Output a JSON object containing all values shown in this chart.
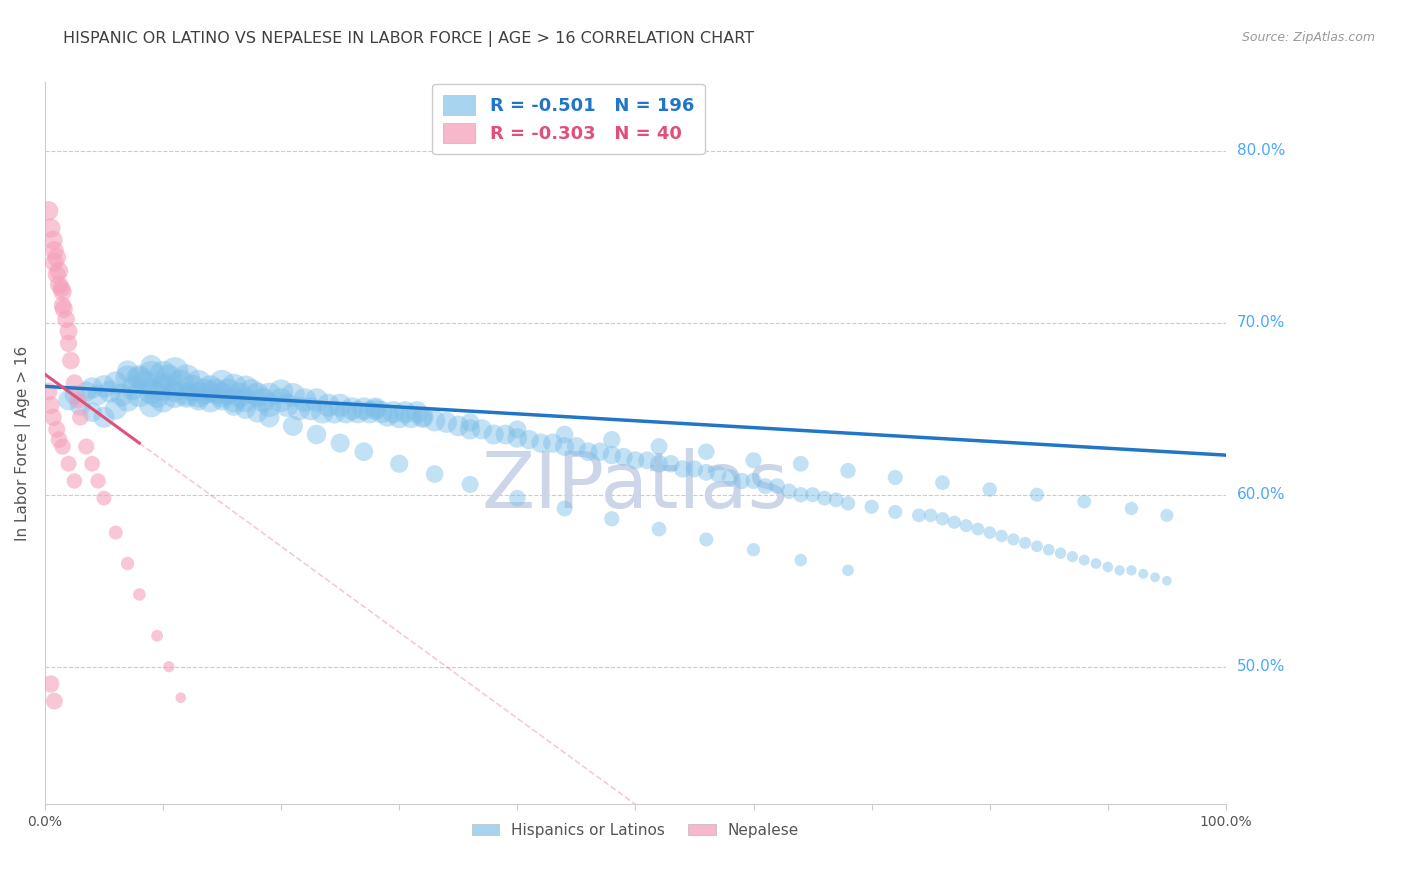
{
  "title": "HISPANIC OR LATINO VS NEPALESE IN LABOR FORCE | AGE > 16 CORRELATION CHART",
  "source": "Source: ZipAtlas.com",
  "ylabel": "In Labor Force | Age > 16",
  "watermark": "ZIPatlas",
  "legend_blue_r": "-0.501",
  "legend_blue_n": "196",
  "legend_pink_r": "-0.303",
  "legend_pink_n": "40",
  "xlim": [
    0.0,
    1.0
  ],
  "ylim": [
    0.42,
    0.84
  ],
  "xtick_labels": [
    "0.0%",
    "100.0%"
  ],
  "ytick_right": [
    0.5,
    0.6,
    0.7,
    0.8
  ],
  "ytick_right_labels": [
    "50.0%",
    "60.0%",
    "70.0%",
    "80.0%"
  ],
  "blue_color": "#7abde8",
  "pink_color": "#f5a0bb",
  "blue_line_color": "#2176c7",
  "pink_line_color": "#e0507a",
  "blue_scatter_x": [
    0.02,
    0.025,
    0.03,
    0.035,
    0.04,
    0.04,
    0.045,
    0.05,
    0.05,
    0.055,
    0.06,
    0.06,
    0.065,
    0.07,
    0.07,
    0.075,
    0.08,
    0.08,
    0.085,
    0.09,
    0.09,
    0.09,
    0.095,
    0.1,
    0.1,
    0.1,
    0.105,
    0.11,
    0.11,
    0.115,
    0.12,
    0.12,
    0.125,
    0.13,
    0.13,
    0.135,
    0.14,
    0.14,
    0.145,
    0.15,
    0.15,
    0.155,
    0.16,
    0.16,
    0.165,
    0.17,
    0.17,
    0.175,
    0.18,
    0.185,
    0.19,
    0.19,
    0.2,
    0.2,
    0.205,
    0.21,
    0.215,
    0.22,
    0.225,
    0.23,
    0.235,
    0.24,
    0.245,
    0.25,
    0.255,
    0.26,
    0.265,
    0.27,
    0.275,
    0.28,
    0.285,
    0.29,
    0.295,
    0.3,
    0.305,
    0.31,
    0.315,
    0.32,
    0.33,
    0.34,
    0.35,
    0.36,
    0.37,
    0.38,
    0.39,
    0.4,
    0.41,
    0.42,
    0.43,
    0.44,
    0.45,
    0.46,
    0.47,
    0.48,
    0.49,
    0.5,
    0.51,
    0.52,
    0.53,
    0.54,
    0.55,
    0.56,
    0.57,
    0.58,
    0.59,
    0.6,
    0.61,
    0.62,
    0.63,
    0.64,
    0.65,
    0.66,
    0.67,
    0.68,
    0.7,
    0.72,
    0.74,
    0.75,
    0.76,
    0.77,
    0.78,
    0.79,
    0.8,
    0.81,
    0.82,
    0.83,
    0.84,
    0.85,
    0.86,
    0.87,
    0.88,
    0.89,
    0.9,
    0.91,
    0.92,
    0.93,
    0.94,
    0.95,
    0.07,
    0.08,
    0.09,
    0.1,
    0.11,
    0.12,
    0.13,
    0.14,
    0.15,
    0.16,
    0.17,
    0.18,
    0.19,
    0.21,
    0.23,
    0.25,
    0.27,
    0.3,
    0.33,
    0.36,
    0.4,
    0.44,
    0.48,
    0.52,
    0.56,
    0.6,
    0.64,
    0.68,
    0.28,
    0.32,
    0.36,
    0.4,
    0.44,
    0.48,
    0.52,
    0.56,
    0.6,
    0.64,
    0.68,
    0.72,
    0.76,
    0.8,
    0.84,
    0.88,
    0.92,
    0.95
  ],
  "blue_scatter_y": [
    0.655,
    0.658,
    0.652,
    0.66,
    0.662,
    0.648,
    0.658,
    0.663,
    0.645,
    0.66,
    0.665,
    0.65,
    0.658,
    0.668,
    0.655,
    0.662,
    0.668,
    0.658,
    0.665,
    0.67,
    0.66,
    0.652,
    0.658,
    0.67,
    0.662,
    0.655,
    0.668,
    0.672,
    0.658,
    0.665,
    0.668,
    0.658,
    0.662,
    0.665,
    0.658,
    0.66,
    0.662,
    0.655,
    0.66,
    0.665,
    0.658,
    0.66,
    0.663,
    0.655,
    0.658,
    0.662,
    0.655,
    0.66,
    0.658,
    0.655,
    0.658,
    0.652,
    0.66,
    0.655,
    0.652,
    0.658,
    0.65,
    0.655,
    0.65,
    0.655,
    0.648,
    0.652,
    0.648,
    0.652,
    0.648,
    0.65,
    0.648,
    0.65,
    0.648,
    0.65,
    0.648,
    0.646,
    0.648,
    0.645,
    0.648,
    0.645,
    0.648,
    0.645,
    0.643,
    0.642,
    0.64,
    0.638,
    0.638,
    0.635,
    0.635,
    0.633,
    0.632,
    0.63,
    0.63,
    0.628,
    0.628,
    0.625,
    0.625,
    0.623,
    0.622,
    0.62,
    0.62,
    0.618,
    0.618,
    0.615,
    0.615,
    0.613,
    0.612,
    0.61,
    0.608,
    0.608,
    0.605,
    0.605,
    0.602,
    0.6,
    0.6,
    0.598,
    0.597,
    0.595,
    0.593,
    0.59,
    0.588,
    0.588,
    0.586,
    0.584,
    0.582,
    0.58,
    0.578,
    0.576,
    0.574,
    0.572,
    0.57,
    0.568,
    0.566,
    0.564,
    0.562,
    0.56,
    0.558,
    0.556,
    0.556,
    0.554,
    0.552,
    0.55,
    0.672,
    0.668,
    0.675,
    0.665,
    0.66,
    0.658,
    0.655,
    0.66,
    0.655,
    0.652,
    0.65,
    0.648,
    0.645,
    0.64,
    0.635,
    0.63,
    0.625,
    0.618,
    0.612,
    0.606,
    0.598,
    0.592,
    0.586,
    0.58,
    0.574,
    0.568,
    0.562,
    0.556,
    0.65,
    0.645,
    0.642,
    0.638,
    0.635,
    0.632,
    0.628,
    0.625,
    0.62,
    0.618,
    0.614,
    0.61,
    0.607,
    0.603,
    0.6,
    0.596,
    0.592,
    0.588
  ],
  "blue_scatter_size": [
    220,
    200,
    230,
    210,
    240,
    200,
    220,
    260,
    230,
    250,
    280,
    250,
    270,
    310,
    280,
    300,
    340,
    310,
    330,
    370,
    340,
    300,
    350,
    380,
    350,
    320,
    360,
    390,
    350,
    365,
    370,
    340,
    360,
    350,
    330,
    345,
    340,
    315,
    335,
    350,
    325,
    340,
    330,
    310,
    325,
    330,
    305,
    320,
    315,
    305,
    310,
    290,
    305,
    295,
    285,
    295,
    280,
    290,
    278,
    285,
    270,
    278,
    268,
    275,
    265,
    272,
    262,
    268,
    260,
    265,
    258,
    255,
    252,
    248,
    250,
    245,
    248,
    240,
    235,
    228,
    222,
    215,
    212,
    208,
    205,
    200,
    197,
    194,
    192,
    188,
    185,
    182,
    178,
    175,
    172,
    168,
    165,
    162,
    158,
    155,
    152,
    148,
    145,
    142,
    138,
    135,
    132,
    128,
    125,
    122,
    118,
    115,
    112,
    108,
    105,
    102,
    98,
    96,
    93,
    90,
    88,
    85,
    82,
    80,
    77,
    75,
    72,
    70,
    68,
    65,
    62,
    60,
    58,
    55,
    55,
    52,
    50,
    48,
    230,
    260,
    240,
    250,
    235,
    240,
    225,
    238,
    222,
    230,
    218,
    225,
    215,
    208,
    198,
    190,
    182,
    172,
    162,
    152,
    142,
    132,
    122,
    112,
    102,
    92,
    82,
    72,
    190,
    182,
    175,
    168,
    162,
    155,
    148,
    142,
    135,
    130,
    124,
    118,
    113,
    108,
    103,
    98,
    93,
    88
  ],
  "pink_scatter_x": [
    0.003,
    0.005,
    0.007,
    0.008,
    0.008,
    0.01,
    0.01,
    0.012,
    0.012,
    0.014,
    0.015,
    0.015,
    0.016,
    0.018,
    0.02,
    0.02,
    0.022,
    0.025,
    0.028,
    0.03,
    0.035,
    0.04,
    0.045,
    0.05,
    0.06,
    0.07,
    0.08,
    0.095,
    0.105,
    0.115,
    0.003,
    0.005,
    0.007,
    0.01,
    0.012,
    0.015,
    0.02,
    0.025,
    0.005,
    0.008
  ],
  "pink_scatter_y": [
    0.765,
    0.755,
    0.748,
    0.742,
    0.735,
    0.738,
    0.728,
    0.73,
    0.722,
    0.72,
    0.718,
    0.71,
    0.708,
    0.702,
    0.695,
    0.688,
    0.678,
    0.665,
    0.655,
    0.645,
    0.628,
    0.618,
    0.608,
    0.598,
    0.578,
    0.56,
    0.542,
    0.518,
    0.5,
    0.482,
    0.66,
    0.652,
    0.645,
    0.638,
    0.632,
    0.628,
    0.618,
    0.608,
    0.49,
    0.48
  ],
  "pink_scatter_size": [
    200,
    195,
    188,
    182,
    176,
    185,
    172,
    178,
    168,
    165,
    175,
    162,
    170,
    160,
    168,
    155,
    162,
    155,
    148,
    142,
    135,
    128,
    122,
    115,
    102,
    92,
    82,
    72,
    65,
    58,
    168,
    162,
    155,
    150,
    145,
    140,
    132,
    125,
    155,
    148
  ],
  "blue_line_x_start": 0.0,
  "blue_line_x_end": 1.0,
  "blue_line_y_start": 0.663,
  "blue_line_y_end": 0.623,
  "pink_line_x_solid_start": 0.0,
  "pink_line_x_solid_end": 0.08,
  "pink_line_y_solid_start": 0.67,
  "pink_line_y_solid_end": 0.63,
  "pink_line_x_dashed_start": 0.08,
  "pink_line_x_dashed_end": 0.5,
  "pink_line_y_dashed_start": 0.63,
  "pink_line_y_dashed_end": 0.42,
  "background_color": "#ffffff",
  "grid_color": "#cccccc",
  "title_color": "#404040",
  "right_axis_color": "#4da6ff",
  "watermark_color": "#ccd6e8",
  "legend_color": "#4da6ff"
}
